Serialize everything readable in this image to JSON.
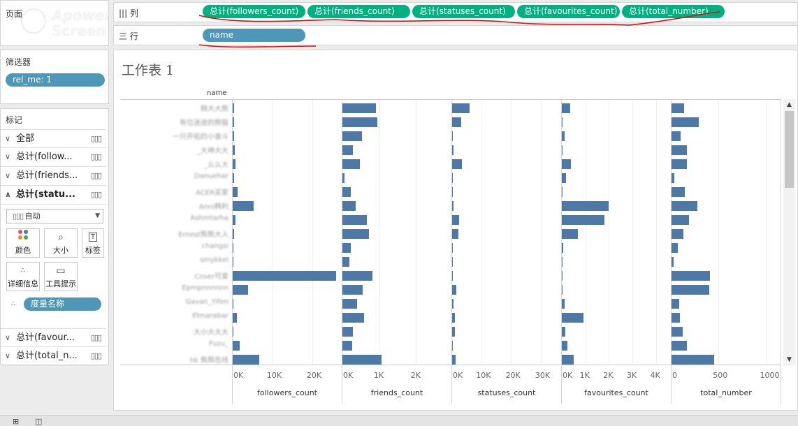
{
  "shelves": {
    "pages_label": "页面",
    "columns_label": "||| 列",
    "rows_label": "三 行",
    "columns_pills": [
      "总计(followers_count)",
      "总计(friends_count)",
      "总计(statuses_count)",
      "总计(favourites_count)",
      "总计(total_number)"
    ],
    "rows_pill": "name"
  },
  "watermark": {
    "line1": "Apowersoft",
    "line2": "Screen Capture Pro"
  },
  "filters": {
    "title": "筛选器",
    "pill": "rel_me: 1"
  },
  "marks": {
    "title": "标记",
    "rows": [
      {
        "label": "全部",
        "chev": "∨",
        "bold": false
      },
      {
        "label": "总计(follow...",
        "chev": "∨",
        "bold": false
      },
      {
        "label": "总计(friends...",
        "chev": "∨",
        "bold": false
      },
      {
        "label": "总计(statu...",
        "chev": "∧",
        "bold": true
      }
    ],
    "bars_icon": "bar-chart-icon",
    "type_select": "自动",
    "buttons": [
      {
        "label": "颜色",
        "icon": "color-icon"
      },
      {
        "label": "大小",
        "icon": "size-icon"
      },
      {
        "label": "标签",
        "icon": "label-icon"
      },
      {
        "label": "详细信息",
        "icon": "detail-icon"
      },
      {
        "label": "工具提示",
        "icon": "tooltip-icon"
      }
    ],
    "measure_pill": "度量名称",
    "bottom_rows": [
      {
        "label": "总计(favour...",
        "chev": "∨"
      },
      {
        "label": "总计(total_n...",
        "chev": "∨"
      }
    ]
  },
  "sheet": {
    "title": "工作表 1",
    "row_header": "name"
  },
  "chart_data": {
    "type": "bar",
    "orientation": "horizontal",
    "row_field": "name",
    "categories": [
      "",
      "",
      "",
      "",
      "",
      "",
      "",
      "",
      "",
      "",
      "",
      "",
      "",
      "",
      "",
      "",
      "",
      "",
      ""
    ],
    "series": [
      {
        "name": "followers_count",
        "max": 26000,
        "ticks": [
          "0K",
          "10K",
          "20K"
        ],
        "tick_values": [
          0,
          10000,
          20000
        ],
        "values": [
          300,
          300,
          300,
          600,
          700,
          300,
          1200,
          5300,
          700,
          300,
          100,
          100,
          26000,
          3800,
          100,
          1000,
          100,
          1800,
          6700
        ]
      },
      {
        "name": "friends_count",
        "max": 2800,
        "ticks": [
          "0K",
          "1K",
          "2K"
        ],
        "tick_values": [
          0,
          1000,
          2000
        ],
        "values": [
          900,
          950,
          530,
          290,
          470,
          50,
          230,
          360,
          660,
          720,
          230,
          190,
          820,
          540,
          400,
          590,
          290,
          270,
          1050
        ]
      },
      {
        "name": "statuses_count",
        "max": 35000,
        "ticks": [
          "0K",
          "10K",
          "20K",
          "30K"
        ],
        "tick_values": [
          0,
          10000,
          20000,
          30000
        ],
        "values": [
          6000,
          3100,
          100,
          400,
          3400,
          100,
          100,
          500,
          2300,
          2200,
          100,
          100,
          300,
          1400,
          400,
          1000,
          900,
          200,
          1300
        ]
      },
      {
        "name": "favourites_count",
        "max": 4400,
        "ticks": [
          "0K",
          "1K",
          "2K",
          "3K",
          "4K"
        ],
        "tick_values": [
          0,
          1000,
          2000,
          3000,
          4000
        ],
        "values": [
          350,
          20,
          130,
          20,
          400,
          170,
          20,
          1990,
          1820,
          680,
          70,
          20,
          20,
          20,
          120,
          930,
          140,
          250,
          510
        ]
      },
      {
        "name": "total_number",
        "max": 1100,
        "ticks": [
          "0",
          "500",
          "1000"
        ],
        "tick_values": [
          0,
          500,
          1000
        ],
        "values": [
          135,
          290,
          95,
          160,
          160,
          30,
          140,
          275,
          185,
          130,
          65,
          25,
          410,
          400,
          85,
          90,
          120,
          160,
          450
        ]
      }
    ]
  },
  "colors": {
    "bar": "#4e79a7",
    "green_pill": "#00b180",
    "blue_pill": "#4e97b8"
  },
  "bottom_icons": [
    "grid-icon",
    "map-icon"
  ]
}
